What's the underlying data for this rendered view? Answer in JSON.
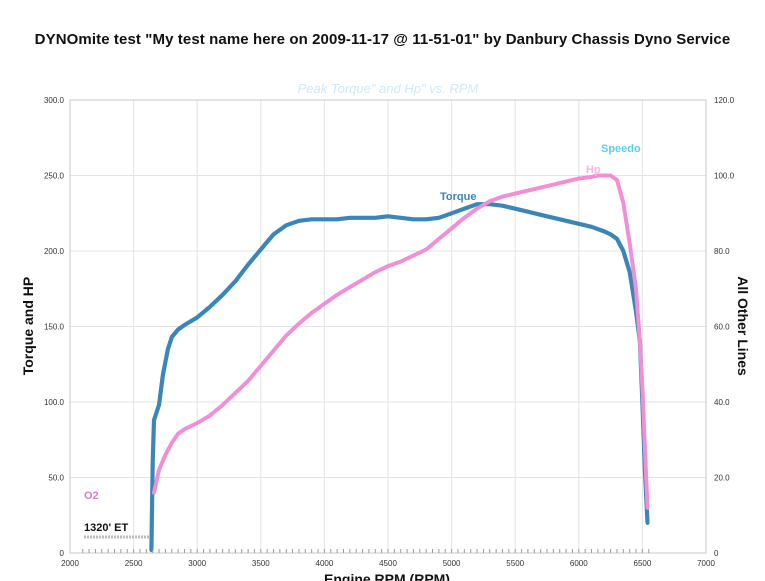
{
  "page_title": "DYNOmite test \"My test name here on 2009-11-17 @ 11-51-01\" by Danbury Chassis Dyno Service",
  "chart_data": {
    "type": "line",
    "title": "DYNOmite test \"My test name here on 2009-11-17 @ 11-51-01\" by Danbury Chassis Dyno Service",
    "subtitle": "Peak Torque\" and Hp\" vs. RPM",
    "xlabel": "Engine RPM (RPM)",
    "ylabel": "Torque and HP",
    "y2label": "All Other Lines",
    "xlim": [
      2000,
      7000
    ],
    "ylim": [
      0,
      300
    ],
    "y2lim": [
      0,
      120
    ],
    "x_ticks": [
      "2000",
      "2500",
      "3000",
      "3500",
      "4000",
      "4500",
      "5000",
      "5500",
      "6000",
      "6500",
      "7000"
    ],
    "y_ticks": [
      "0",
      "50.0",
      "100.0",
      "150.0",
      "200.0",
      "250.0",
      "300.0"
    ],
    "y2_ticks": [
      "0",
      "20.0",
      "40.0",
      "60.0",
      "80.0",
      "100.0",
      "120.0"
    ],
    "grid": true,
    "series": [
      {
        "name": "Torque",
        "color": "#3b86b8",
        "axis": "left",
        "x": [
          2640,
          2650,
          2660,
          2700,
          2730,
          2770,
          2800,
          2850,
          2900,
          3000,
          3100,
          3200,
          3300,
          3400,
          3500,
          3600,
          3700,
          3800,
          3900,
          4000,
          4100,
          4200,
          4300,
          4400,
          4500,
          4600,
          4700,
          4800,
          4900,
          5000,
          5100,
          5200,
          5300,
          5400,
          5500,
          5600,
          5700,
          5800,
          5900,
          6000,
          6100,
          6200,
          6250,
          6300,
          6350,
          6400,
          6450,
          6480,
          6500,
          6520,
          6540
        ],
        "values": [
          2,
          60,
          88,
          98,
          118,
          135,
          143,
          148,
          151,
          156,
          163,
          171,
          180,
          191,
          201,
          211,
          217,
          220,
          221,
          221,
          221,
          222,
          222,
          222,
          223,
          222,
          221,
          221,
          222,
          225,
          228,
          231,
          231,
          230,
          228,
          226,
          224,
          222,
          220,
          218,
          216,
          213,
          211,
          208,
          200,
          186,
          160,
          140,
          100,
          55,
          20
        ]
      },
      {
        "name": "Hp",
        "color": "#f18fd6",
        "axis": "left",
        "x": [
          2660,
          2700,
          2750,
          2800,
          2850,
          2900,
          3000,
          3100,
          3200,
          3300,
          3400,
          3500,
          3600,
          3700,
          3800,
          3900,
          4000,
          4100,
          4200,
          4300,
          4400,
          4500,
          4600,
          4700,
          4800,
          4900,
          5000,
          5100,
          5200,
          5300,
          5400,
          5500,
          5600,
          5700,
          5800,
          5900,
          6000,
          6100,
          6150,
          6200,
          6250,
          6300,
          6350,
          6400,
          6450,
          6480,
          6500,
          6520,
          6540
        ],
        "values": [
          40,
          55,
          65,
          73,
          79,
          82,
          86,
          91,
          98,
          106,
          114,
          124,
          134,
          144,
          152,
          159,
          165,
          171,
          176,
          181,
          186,
          190,
          193,
          197,
          201,
          208,
          215,
          222,
          228,
          233,
          236,
          238,
          240,
          242,
          244,
          246,
          248,
          249,
          250,
          250,
          250,
          247,
          232,
          205,
          175,
          140,
          110,
          70,
          30
        ]
      },
      {
        "name": "O2",
        "color": "#f18fd6",
        "axis": "right",
        "x": [],
        "values": []
      },
      {
        "name": "Speedo",
        "color": "#5ad1e6",
        "axis": "right",
        "x": [],
        "values": []
      }
    ],
    "annotations": [
      "1320' ET"
    ]
  }
}
